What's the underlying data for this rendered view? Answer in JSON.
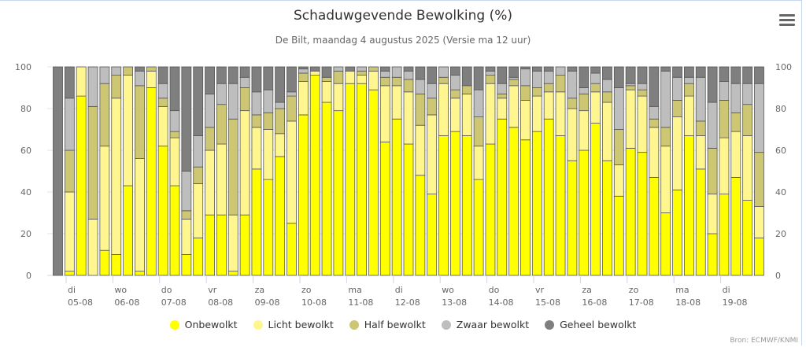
{
  "chart_data": {
    "type": "bar",
    "stacked": true,
    "title": "Schaduwgevende Bewolking (%)",
    "subtitle": "De Bilt, maandag 4 augustus 2025 (Versie ma 12 uur)",
    "ylim": [
      0,
      100
    ],
    "yticks": [
      0,
      20,
      40,
      60,
      80,
      100
    ],
    "grid": true,
    "legend_position": "bottom",
    "day_labels": [
      {
        "day": "di",
        "date": "05-08"
      },
      {
        "day": "wo",
        "date": "06-08"
      },
      {
        "day": "do",
        "date": "07-08"
      },
      {
        "day": "vr",
        "date": "08-08"
      },
      {
        "day": "za",
        "date": "09-08"
      },
      {
        "day": "zo",
        "date": "10-08"
      },
      {
        "day": "ma",
        "date": "11-08"
      },
      {
        "day": "di",
        "date": "12-08"
      },
      {
        "day": "wo",
        "date": "13-08"
      },
      {
        "day": "do",
        "date": "14-08"
      },
      {
        "day": "vr",
        "date": "15-08"
      },
      {
        "day": "za",
        "date": "16-08"
      },
      {
        "day": "zo",
        "date": "17-08"
      },
      {
        "day": "ma",
        "date": "18-08"
      },
      {
        "day": "di",
        "date": "19-08"
      }
    ],
    "series": [
      {
        "name": "Onbewolkt",
        "color": "#ffff00"
      },
      {
        "name": "Licht bewolkt",
        "color": "#fff68f"
      },
      {
        "name": "Half bewolkt",
        "color": "#cdc673"
      },
      {
        "name": "Zwaar bewolkt",
        "color": "#bebebe"
      },
      {
        "name": "Geheel bewolkt",
        "color": "#7f7f7f"
      }
    ],
    "bars": [
      [
        0,
        0,
        0,
        0,
        100
      ],
      [
        2,
        38,
        20,
        25,
        15
      ],
      [
        86,
        14,
        0,
        0,
        0
      ],
      [
        0,
        27,
        54,
        19,
        0
      ],
      [
        12,
        50,
        30,
        8,
        0
      ],
      [
        10,
        75,
        11,
        4,
        0
      ],
      [
        43,
        53,
        4,
        0,
        0
      ],
      [
        2,
        54,
        35,
        7,
        2
      ],
      [
        90,
        8,
        2,
        0,
        0
      ],
      [
        62,
        19,
        4,
        7,
        8
      ],
      [
        43,
        23,
        3,
        10,
        21
      ],
      [
        10,
        17,
        4,
        19,
        50
      ],
      [
        18,
        26,
        8,
        15,
        33
      ],
      [
        29,
        31,
        11,
        16,
        13
      ],
      [
        29,
        34,
        19,
        10,
        8
      ],
      [
        2,
        27,
        46,
        17,
        8
      ],
      [
        29,
        50,
        11,
        5,
        5
      ],
      [
        51,
        20,
        6,
        11,
        12
      ],
      [
        46,
        24,
        8,
        11,
        11
      ],
      [
        57,
        11,
        12,
        3,
        17
      ],
      [
        25,
        49,
        12,
        2,
        12
      ],
      [
        77,
        16,
        4,
        2,
        1
      ],
      [
        96,
        2,
        0,
        0,
        2
      ],
      [
        83,
        10,
        2,
        0,
        5
      ],
      [
        79,
        13,
        6,
        2,
        0
      ],
      [
        92,
        6,
        0,
        0,
        2
      ],
      [
        92,
        4,
        2,
        2,
        0
      ],
      [
        89,
        9,
        2,
        0,
        0
      ],
      [
        64,
        27,
        4,
        3,
        2
      ],
      [
        75,
        16,
        4,
        5,
        0
      ],
      [
        63,
        25,
        6,
        4,
        2
      ],
      [
        48,
        24,
        15,
        7,
        6
      ],
      [
        39,
        38,
        8,
        7,
        8
      ],
      [
        67,
        25,
        3,
        5,
        0
      ],
      [
        69,
        16,
        4,
        7,
        4
      ],
      [
        67,
        20,
        4,
        0,
        9
      ],
      [
        46,
        16,
        14,
        13,
        11
      ],
      [
        63,
        29,
        4,
        2,
        2
      ],
      [
        75,
        10,
        2,
        5,
        8
      ],
      [
        71,
        20,
        3,
        1,
        5
      ],
      [
        65,
        19,
        7,
        8,
        1
      ],
      [
        69,
        17,
        4,
        8,
        2
      ],
      [
        75,
        13,
        4,
        6,
        2
      ],
      [
        67,
        21,
        8,
        4,
        0
      ],
      [
        55,
        25,
        5,
        13,
        2
      ],
      [
        60,
        19,
        8,
        3,
        10
      ],
      [
        73,
        15,
        4,
        5,
        3
      ],
      [
        55,
        28,
        5,
        6,
        6
      ],
      [
        38,
        15,
        17,
        20,
        10
      ],
      [
        61,
        28,
        2,
        1,
        8
      ],
      [
        59,
        27,
        3,
        3,
        8
      ],
      [
        47,
        24,
        4,
        6,
        19
      ],
      [
        30,
        32,
        9,
        27,
        2
      ],
      [
        41,
        35,
        8,
        11,
        5
      ],
      [
        67,
        19,
        6,
        3,
        5
      ],
      [
        51,
        16,
        7,
        21,
        5
      ],
      [
        20,
        19,
        22,
        22,
        17
      ],
      [
        39,
        27,
        18,
        9,
        7
      ],
      [
        47,
        22,
        9,
        14,
        8
      ],
      [
        36,
        31,
        15,
        10,
        8
      ],
      [
        18,
        15,
        26,
        33,
        8
      ]
    ]
  },
  "ui": {
    "menu_icon": "hamburger-menu-icon",
    "source": "Bron: ECMWF/KNMI"
  }
}
